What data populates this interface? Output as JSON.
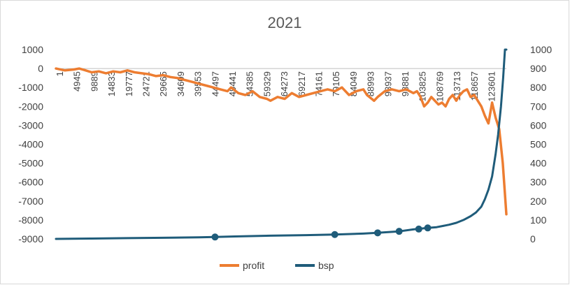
{
  "chart_data": {
    "type": "line",
    "title": "2021",
    "xlabel": "",
    "ylabel": "",
    "grid": false,
    "legend_position": "bottom",
    "x_categories": [
      "1",
      "4945",
      "9889",
      "14833",
      "19777",
      "24721",
      "29665",
      "34609",
      "39553",
      "44497",
      "49441",
      "54385",
      "59329",
      "64273",
      "69217",
      "74161",
      "79105",
      "84049",
      "88993",
      "93937",
      "98881",
      "103825",
      "108769",
      "113713",
      "118657",
      "123601"
    ],
    "x_range": [
      1,
      126000
    ],
    "y_left": {
      "ticks": [
        1000,
        0,
        -1000,
        -2000,
        -3000,
        -4000,
        -5000,
        -6000,
        -7000,
        -8000,
        -9000
      ],
      "range": [
        -9000,
        1000
      ]
    },
    "y_right": {
      "ticks": [
        1000,
        900,
        800,
        700,
        600,
        500,
        400,
        300,
        200,
        100,
        0
      ],
      "range": [
        0,
        1000
      ]
    },
    "series": [
      {
        "name": "profit",
        "axis": "left",
        "color": "#ED7D31",
        "points": [
          [
            1,
            0
          ],
          [
            2500,
            -100
          ],
          [
            5000,
            -50
          ],
          [
            6500,
            0
          ],
          [
            8000,
            -80
          ],
          [
            10000,
            -200
          ],
          [
            12000,
            -150
          ],
          [
            14000,
            -250
          ],
          [
            16000,
            -150
          ],
          [
            18000,
            -200
          ],
          [
            20000,
            -100
          ],
          [
            22000,
            -200
          ],
          [
            24000,
            -250
          ],
          [
            26000,
            -300
          ],
          [
            28000,
            -400
          ],
          [
            30000,
            -350
          ],
          [
            32000,
            -450
          ],
          [
            34000,
            -500
          ],
          [
            36000,
            -600
          ],
          [
            38000,
            -700
          ],
          [
            40000,
            -800
          ],
          [
            42000,
            -900
          ],
          [
            44000,
            -1000
          ],
          [
            46000,
            -1100
          ],
          [
            48000,
            -1200
          ],
          [
            49000,
            -1000
          ],
          [
            51000,
            -1300
          ],
          [
            53000,
            -1400
          ],
          [
            55000,
            -1200
          ],
          [
            57000,
            -1500
          ],
          [
            59000,
            -1600
          ],
          [
            60000,
            -1700
          ],
          [
            62000,
            -1500
          ],
          [
            64000,
            -1600
          ],
          [
            66000,
            -1300
          ],
          [
            68000,
            -1500
          ],
          [
            70000,
            -1400
          ],
          [
            72000,
            -1300
          ],
          [
            74000,
            -1200
          ],
          [
            76000,
            -1100
          ],
          [
            78000,
            -1200
          ],
          [
            80000,
            -1000
          ],
          [
            82000,
            -1400
          ],
          [
            84000,
            -1200
          ],
          [
            86000,
            -1100
          ],
          [
            87000,
            -1400
          ],
          [
            89000,
            -1700
          ],
          [
            90000,
            -1500
          ],
          [
            92000,
            -1200
          ],
          [
            94000,
            -1100
          ],
          [
            96000,
            -1200
          ],
          [
            98000,
            -1100
          ],
          [
            100000,
            -1300
          ],
          [
            101000,
            -1200
          ],
          [
            102000,
            -1500
          ],
          [
            103000,
            -2000
          ],
          [
            104000,
            -1800
          ],
          [
            105000,
            -1500
          ],
          [
            106000,
            -1700
          ],
          [
            107000,
            -1900
          ],
          [
            108000,
            -1800
          ],
          [
            109000,
            -2000
          ],
          [
            110000,
            -1600
          ],
          [
            111000,
            -1400
          ],
          [
            112000,
            -1700
          ],
          [
            113000,
            -1400
          ],
          [
            114000,
            -1200
          ],
          [
            115000,
            -1100
          ],
          [
            116000,
            -1500
          ],
          [
            117000,
            -1400
          ],
          [
            118000,
            -1700
          ],
          [
            119000,
            -2000
          ],
          [
            120000,
            -2500
          ],
          [
            121000,
            -2900
          ],
          [
            122000,
            -1800
          ],
          [
            123000,
            -2600
          ],
          [
            124000,
            -3200
          ],
          [
            125000,
            -5000
          ],
          [
            126000,
            -7700
          ]
        ]
      },
      {
        "name": "bsp",
        "axis": "right",
        "color": "#1F5C7A",
        "points": [
          [
            1,
            0
          ],
          [
            10000,
            2
          ],
          [
            20000,
            4
          ],
          [
            30000,
            6
          ],
          [
            40000,
            8
          ],
          [
            44500,
            10
          ],
          [
            50000,
            13
          ],
          [
            60000,
            17
          ],
          [
            70000,
            20
          ],
          [
            78000,
            23
          ],
          [
            86000,
            28
          ],
          [
            90000,
            32
          ],
          [
            96000,
            40
          ],
          [
            100000,
            50
          ],
          [
            104000,
            58
          ],
          [
            106500,
            62
          ],
          [
            110000,
            75
          ],
          [
            112000,
            85
          ],
          [
            114000,
            100
          ],
          [
            116000,
            120
          ],
          [
            117500,
            140
          ],
          [
            119000,
            170
          ],
          [
            120000,
            210
          ],
          [
            121000,
            260
          ],
          [
            122000,
            330
          ],
          [
            123000,
            450
          ],
          [
            123700,
            550
          ],
          [
            124500,
            700
          ],
          [
            125100,
            850
          ],
          [
            125600,
            1000
          ],
          [
            126000,
            1000
          ]
        ],
        "markers": [
          [
            44500,
            10
          ],
          [
            78000,
            23
          ],
          [
            90000,
            32
          ],
          [
            96000,
            40
          ],
          [
            101500,
            52
          ],
          [
            104000,
            58
          ]
        ]
      }
    ]
  }
}
